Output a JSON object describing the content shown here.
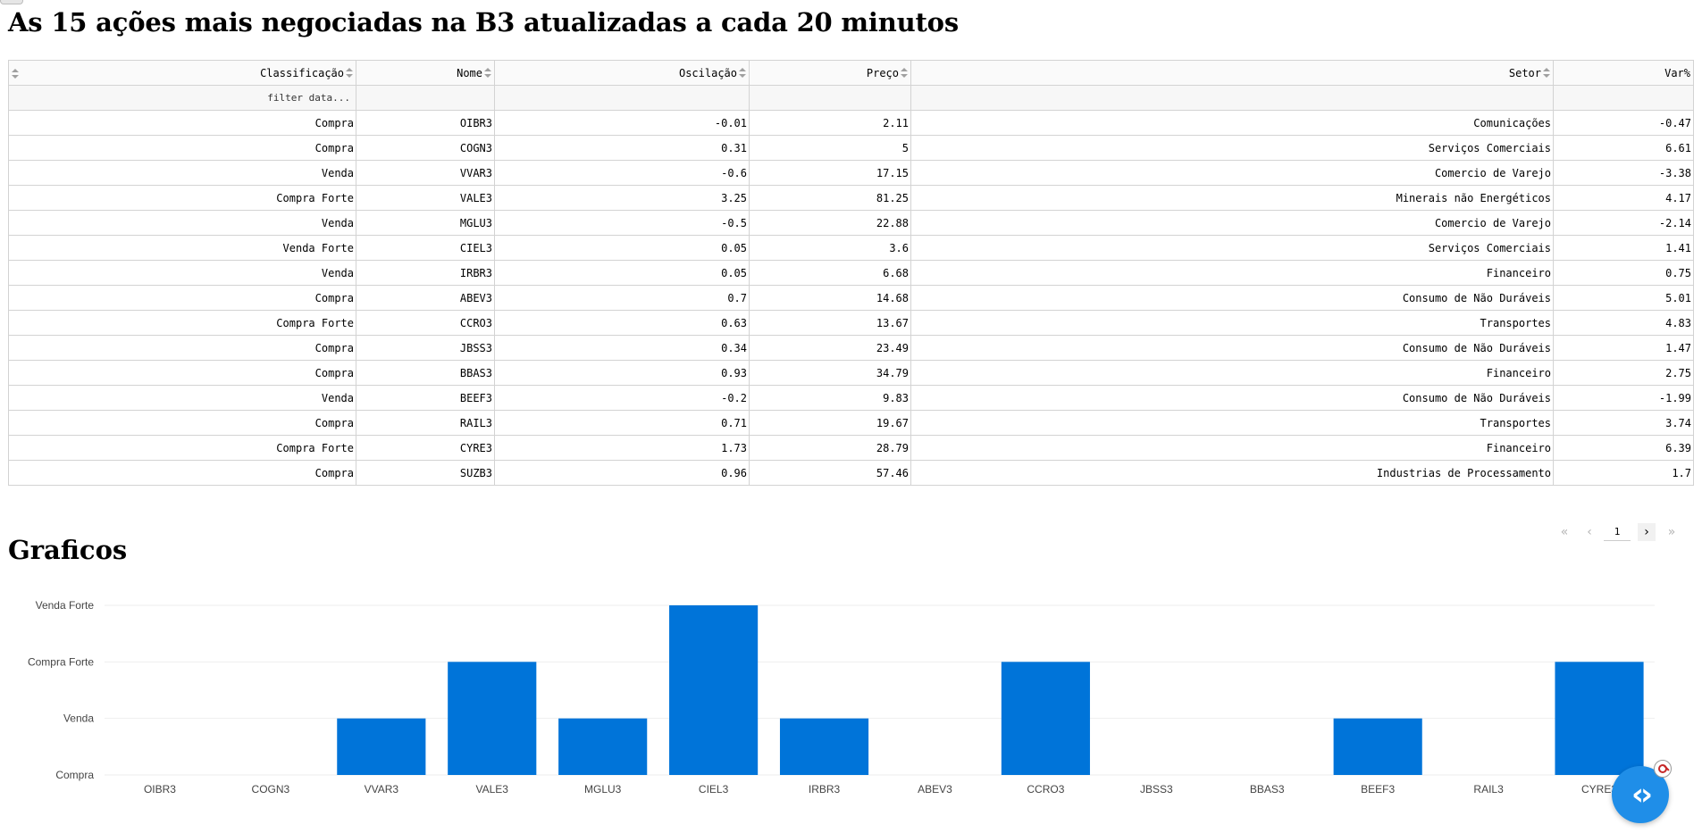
{
  "title": "As 15 ações mais negociadas na B3 atualizadas a cada 20 minutos",
  "table": {
    "headers": [
      "Classificação",
      "Nome",
      "Oscilação",
      "Preço",
      "Setor",
      "Var%"
    ],
    "filter_placeholder": "filter data...",
    "rows": [
      [
        "Compra",
        "OIBR3",
        "-0.01",
        "2.11",
        "Comunicações",
        "-0.47"
      ],
      [
        "Compra",
        "COGN3",
        "0.31",
        "5",
        "Serviços Comerciais",
        "6.61"
      ],
      [
        "Venda",
        "VVAR3",
        "-0.6",
        "17.15",
        "Comercio de Varejo",
        "-3.38"
      ],
      [
        "Compra Forte",
        "VALE3",
        "3.25",
        "81.25",
        "Minerais não Energéticos",
        "4.17"
      ],
      [
        "Venda",
        "MGLU3",
        "-0.5",
        "22.88",
        "Comercio de Varejo",
        "-2.14"
      ],
      [
        "Venda Forte",
        "CIEL3",
        "0.05",
        "3.6",
        "Serviços Comerciais",
        "1.41"
      ],
      [
        "Venda",
        "IRBR3",
        "0.05",
        "6.68",
        "Financeiro",
        "0.75"
      ],
      [
        "Compra",
        "ABEV3",
        "0.7",
        "14.68",
        "Consumo de Não Duráveis",
        "5.01"
      ],
      [
        "Compra Forte",
        "CCRO3",
        "0.63",
        "13.67",
        "Transportes",
        "4.83"
      ],
      [
        "Compra",
        "JBSS3",
        "0.34",
        "23.49",
        "Consumo de Não Duráveis",
        "1.47"
      ],
      [
        "Compra",
        "BBAS3",
        "0.93",
        "34.79",
        "Financeiro",
        "2.75"
      ],
      [
        "Venda",
        "BEEF3",
        "-0.2",
        "9.83",
        "Consumo de Não Duráveis",
        "-1.99"
      ],
      [
        "Compra",
        "RAIL3",
        "0.71",
        "19.67",
        "Transportes",
        "3.74"
      ],
      [
        "Compra Forte",
        "CYRE3",
        "1.73",
        "28.79",
        "Financeiro",
        "6.39"
      ],
      [
        "Compra",
        "SUZB3",
        "0.96",
        "57.46",
        "Industrias de Processamento",
        "1.7"
      ]
    ]
  },
  "pagination": {
    "current_page": "1"
  },
  "section_title": "Graficos",
  "chart_data": {
    "type": "bar",
    "categories": [
      "OIBR3",
      "COGN3",
      "VVAR3",
      "VALE3",
      "MGLU3",
      "CIEL3",
      "IRBR3",
      "ABEV3",
      "CCRO3",
      "JBSS3",
      "BBAS3",
      "BEEF3",
      "RAIL3",
      "CYRE3"
    ],
    "y_categories": [
      "Compra",
      "Venda",
      "Compra Forte",
      "Venda Forte"
    ],
    "values": [
      "Compra",
      "Compra",
      "Venda",
      "Compra Forte",
      "Venda",
      "Venda Forte",
      "Venda",
      "Compra",
      "Compra Forte",
      "Compra",
      "Compra",
      "Venda",
      "Compra",
      "Compra Forte"
    ],
    "grid": true,
    "bar_color": "#0074d9"
  },
  "colors": {
    "bar": "#0074d9",
    "grid": "#eeeeee",
    "fab": "#1f8ee8"
  },
  "icons": {
    "fab": "code-icon",
    "badge": "ban-icon"
  }
}
